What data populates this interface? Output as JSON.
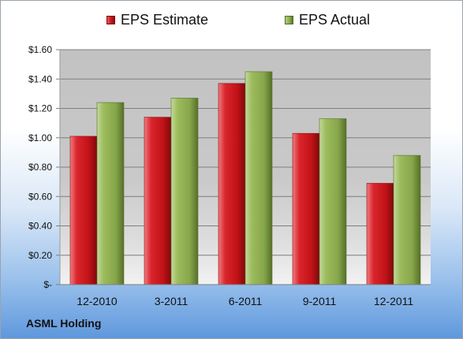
{
  "chart_data": {
    "type": "bar",
    "categories": [
      "12-2010",
      "3-2011",
      "6-2011",
      "9-2011",
      "12-2011"
    ],
    "series": [
      {
        "name": "EPS Estimate",
        "values": [
          1.01,
          1.14,
          1.37,
          1.03,
          0.69
        ],
        "color": "#c8151b"
      },
      {
        "name": "EPS Actual",
        "values": [
          1.24,
          1.27,
          1.45,
          1.13,
          0.88
        ],
        "color": "#8cad4f"
      }
    ],
    "y_ticks": [
      {
        "value": 0,
        "label": "$-"
      },
      {
        "value": 0.2,
        "label": "$0.20"
      },
      {
        "value": 0.4,
        "label": "$0.40"
      },
      {
        "value": 0.6,
        "label": "$0.60"
      },
      {
        "value": 0.8,
        "label": "$0.80"
      },
      {
        "value": 1.0,
        "label": "$1.00"
      },
      {
        "value": 1.2,
        "label": "$1.20"
      },
      {
        "value": 1.4,
        "label": "$1.40"
      },
      {
        "value": 1.6,
        "label": "$1.60"
      }
    ],
    "ylim": [
      0,
      1.6
    ],
    "grid": true,
    "legend_position": "top"
  },
  "footer": {
    "company": "ASML Holding"
  }
}
